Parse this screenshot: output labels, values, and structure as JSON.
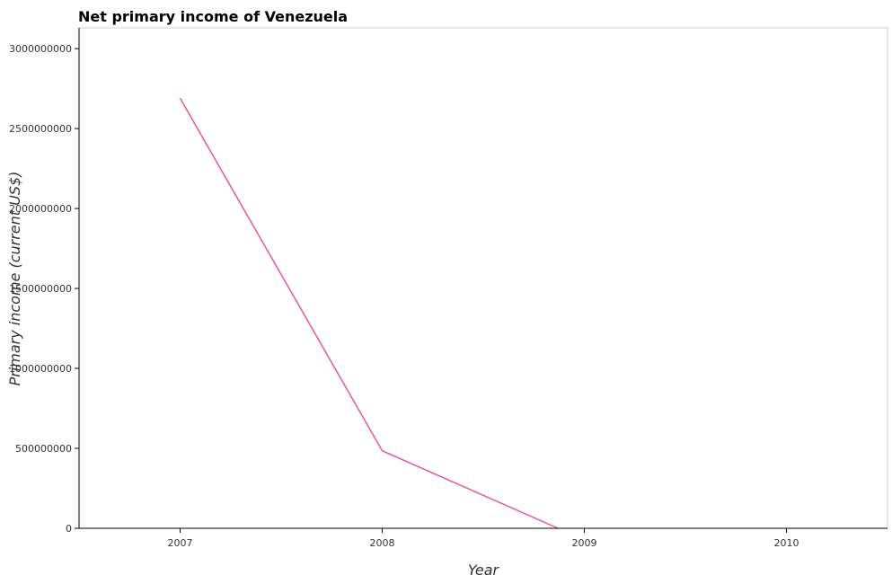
{
  "chart_data": {
    "type": "line",
    "title": "Net primary income of Venezuela",
    "xlabel": "Year",
    "ylabel": "Primary income (current US$)",
    "categories": [
      "2007",
      "2008",
      "2009",
      "2010"
    ],
    "series": [
      {
        "values": [
          2690000000,
          485000000,
          null,
          null
        ],
        "color": "#e8559c"
      }
    ],
    "ylim": [
      0,
      3130000000
    ],
    "yticks": [
      0,
      500000000,
      1000000000,
      1500000000,
      2000000000,
      2500000000,
      3000000000
    ],
    "ytick_labels": [
      "0",
      "500000000",
      "1000000000",
      "1500000000",
      "2000000000",
      "2500000000",
      "3000000000"
    ],
    "line_dips_below_zero_after": "2008",
    "grid": false,
    "legend": "none",
    "frame_color": "#cccccc",
    "axis_color": "#000000"
  }
}
